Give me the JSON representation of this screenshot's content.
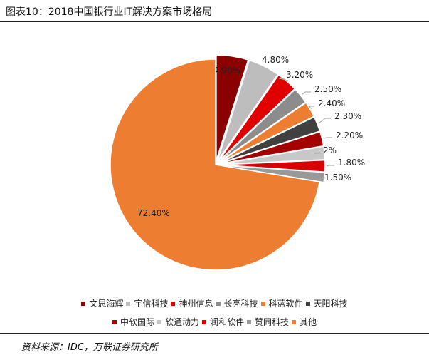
{
  "header": {
    "title": "图表10：2018中国银行业IT解决方案市场格局"
  },
  "chart_data": {
    "type": "pie",
    "start_angle_deg": 0,
    "direction": "clockwise",
    "slices": [
      {
        "label": "文思海辉",
        "value": 4.9,
        "display": "4.90%",
        "color": "#8b0000"
      },
      {
        "label": "宇信科技",
        "value": 4.8,
        "display": "4.80%",
        "color": "#bdbdbd"
      },
      {
        "label": "神州信息",
        "value": 3.2,
        "display": "3.20%",
        "color": "#e00000"
      },
      {
        "label": "长亮科技",
        "value": 2.5,
        "display": "2.50%",
        "color": "#8c8c8c"
      },
      {
        "label": "科蓝软件",
        "value": 2.4,
        "display": "2.40%",
        "color": "#ed7d31"
      },
      {
        "label": "天阳科技",
        "value": 2.3,
        "display": "2.30%",
        "color": "#404040"
      },
      {
        "label": "中软国际",
        "value": 2.2,
        "display": "2.20%",
        "color": "#a50000"
      },
      {
        "label": "软通动力",
        "value": 2.0,
        "display": "2%",
        "color": "#c8c8c8"
      },
      {
        "label": "润和软件",
        "value": 1.8,
        "display": "1.80%",
        "color": "#d80000"
      },
      {
        "label": "赞同科技",
        "value": 1.5,
        "display": "1.50%",
        "color": "#999999"
      },
      {
        "label": "其他",
        "value": 72.4,
        "display": "72.40%",
        "color": "#ed7d31"
      }
    ],
    "legend_position": "bottom"
  },
  "footer": {
    "source": "资料来源：IDC，万联证券研究所"
  }
}
